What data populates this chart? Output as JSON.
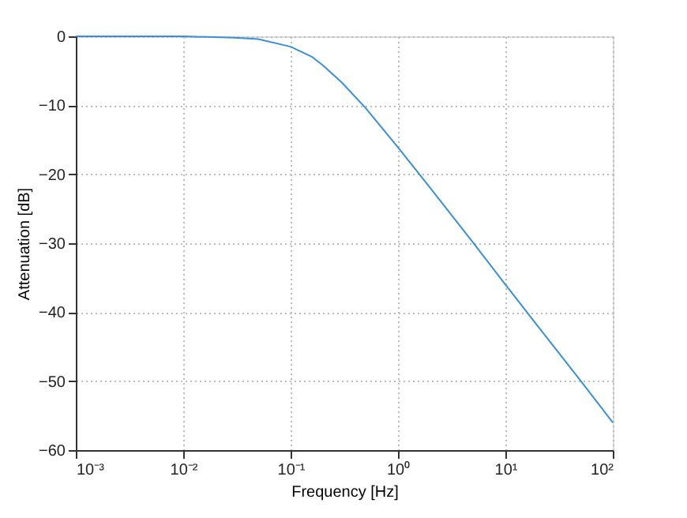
{
  "chart_data": {
    "type": "line",
    "xlabel": "Frequency [Hz]",
    "ylabel": "Attenuation [dB]",
    "x": [
      0.001,
      0.01,
      0.03,
      0.05,
      0.1,
      0.159,
      0.2,
      0.3,
      0.5,
      1,
      2,
      5,
      10,
      20,
      50,
      100
    ],
    "series": [
      {
        "color": "#3a8fd6",
        "values": [
          0,
          0,
          -0.2,
          -0.4,
          -1.5,
          -3,
          -4.2,
          -6.7,
          -10.4,
          -16.1,
          -22,
          -29.9,
          -36,
          -42,
          -49.9,
          -56
        ]
      }
    ],
    "log": "x",
    "xlim": [
      0.001,
      100
    ],
    "xticks": [
      {
        "value": 0.001,
        "label": "10⁻³"
      },
      {
        "value": 0.01,
        "label": "10⁻²"
      },
      {
        "value": 0.1,
        "label": "10⁻¹"
      },
      {
        "value": 1,
        "label": "10⁰"
      },
      {
        "value": 10,
        "label": "10¹"
      },
      {
        "value": 100,
        "label": "10²"
      }
    ],
    "ylim": [
      -60,
      0
    ],
    "yticks": [
      -60,
      -50,
      -40,
      -30,
      -20,
      -10,
      0
    ],
    "grid": true,
    "marker": "none",
    "line_style": "solid"
  }
}
